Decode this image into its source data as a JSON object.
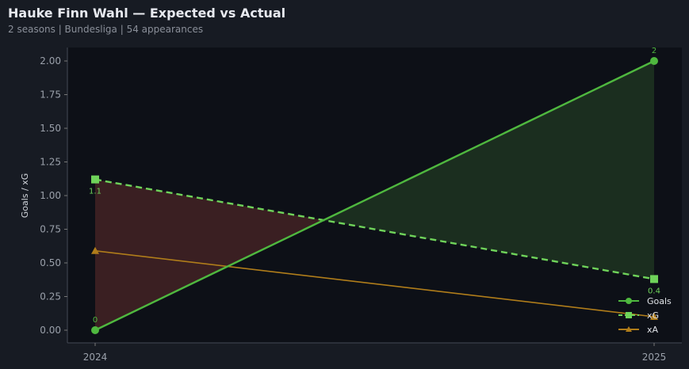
{
  "header": {
    "title": "Hauke Finn Wahl — Expected vs Actual",
    "subtitle": "2 seasons | Bundesliga | 54 appearances"
  },
  "chart_data": {
    "type": "line",
    "ylabel": "Goals / xG",
    "xlabel": "",
    "categories": [
      "2024",
      "2025"
    ],
    "ylim": [
      -0.08,
      2.1
    ],
    "yticks": [
      "0.00",
      "0.25",
      "0.50",
      "0.75",
      "1.00",
      "1.25",
      "1.50",
      "1.75",
      "2.00"
    ],
    "legend": "bottom-right",
    "grid": false,
    "series": [
      {
        "name": "Goals",
        "values": [
          0,
          2
        ],
        "labels": [
          "0",
          "2"
        ],
        "color": "#4fb83f",
        "marker": "circle",
        "dash": false
      },
      {
        "name": "xG",
        "values": [
          1.12,
          0.38
        ],
        "labels": [
          "1.1",
          "0.4"
        ],
        "color": "#6fd35a",
        "marker": "square",
        "dash": true
      },
      {
        "name": "xA",
        "values": [
          0.59,
          0.1
        ],
        "labels": [],
        "color": "#b07d1a",
        "marker": "triangle",
        "dash": false
      }
    ],
    "fill_colors": {
      "under": "#3a1f22",
      "over": "#1b2e1f"
    }
  }
}
